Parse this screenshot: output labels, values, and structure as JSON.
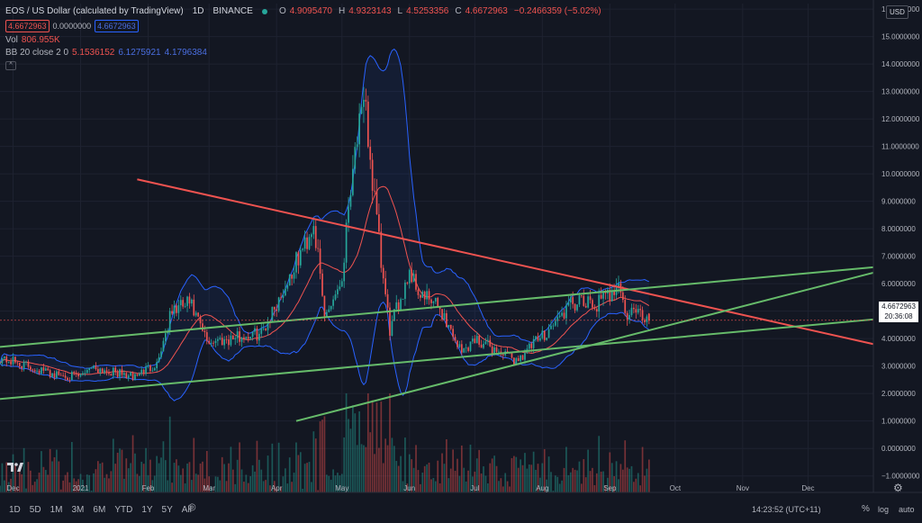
{
  "header": {
    "symbol": "EOS / US Dollar (calculated by TradingView)",
    "interval": "1D",
    "exchange": "BINANCE",
    "open_label": "O",
    "open": "4.9095470",
    "high_label": "H",
    "high": "4.9323143",
    "low_label": "L",
    "low": "4.5253356",
    "close_label": "C",
    "close": "4.6672963",
    "change": "−0.2466359 (−5.02%)",
    "sell": "4.6672963",
    "spread": "0.0000000",
    "buy": "4.6672963"
  },
  "indicators": {
    "volume_label": "Vol",
    "volume_value": "806.955K",
    "bb_label": "BB 20 close 2 0",
    "bb_basis": "5.1536152",
    "bb_upper": "6.1275921",
    "bb_lower": "4.1796384",
    "collapse_glyph": "^"
  },
  "price_scale": {
    "currency": "USD",
    "labels": [
      "16.0000000",
      "15.0000000",
      "14.0000000",
      "13.0000000",
      "12.0000000",
      "11.0000000",
      "10.0000000",
      "9.0000000",
      "8.0000000",
      "7.0000000",
      "6.0000000",
      "5.0000000",
      "4.0000000",
      "3.0000000",
      "2.0000000",
      "1.0000000",
      "0.0000000",
      "−1.0000000"
    ],
    "last_price": "4.6672963",
    "countdown": "20:36:08"
  },
  "time_axis": {
    "labels": [
      "Dec",
      "2021",
      "Feb",
      "Mar",
      "Apr",
      "May",
      "Jun",
      "Jul",
      "Aug",
      "Sep",
      "Oct",
      "Nov",
      "Dec"
    ]
  },
  "toolbar": {
    "timeframes": [
      "1D",
      "5D",
      "1M",
      "3M",
      "6M",
      "YTD",
      "1Y",
      "5Y",
      "All"
    ],
    "camera_glyph": "◎",
    "clock": "14:23:52 (UTC+11)",
    "percent_label": "%",
    "log_label": "log",
    "auto_label": "auto",
    "settings_glyph": "⚙"
  },
  "colors": {
    "background": "#131722",
    "up": "#26a69a",
    "down": "#ef5350",
    "bb_band": "#2962ff",
    "bb_basis": "#ef5350",
    "trend_red": "#ef5350",
    "trend_green": "#66bb6a"
  },
  "chart_data": {
    "type": "candlestick",
    "title": "EOS / US Dollar (calculated by TradingView)",
    "interval": "1D",
    "y_range": [
      -1.6,
      16.2
    ],
    "x_range": [
      "2020-11-25",
      "2021-12-31"
    ],
    "anchors": [
      [
        "2020-11-25",
        3.3
      ],
      [
        "2020-12-20",
        2.7
      ],
      [
        "2021-01-01",
        2.6
      ],
      [
        "2021-01-05",
        3.0
      ],
      [
        "2021-01-25",
        2.6
      ],
      [
        "2021-02-05",
        3.1
      ],
      [
        "2021-02-12",
        5.0
      ],
      [
        "2021-02-20",
        5.3
      ],
      [
        "2021-02-28",
        3.9
      ],
      [
        "2021-03-10",
        4.0
      ],
      [
        "2021-03-25",
        4.2
      ],
      [
        "2021-04-05",
        5.9
      ],
      [
        "2021-04-15",
        7.6
      ],
      [
        "2021-04-18",
        8.3
      ],
      [
        "2021-04-23",
        4.8
      ],
      [
        "2021-05-01",
        6.2
      ],
      [
        "2021-05-05",
        9.8
      ],
      [
        "2021-05-08",
        11.5
      ],
      [
        "2021-05-12",
        12.2
      ],
      [
        "2021-05-14",
        10.5
      ],
      [
        "2021-05-19",
        6.7
      ],
      [
        "2021-05-23",
        4.3
      ],
      [
        "2021-06-01",
        6.5
      ],
      [
        "2021-06-06",
        5.6
      ],
      [
        "2021-06-15",
        5.1
      ],
      [
        "2021-06-25",
        3.5
      ],
      [
        "2021-07-01",
        4.0
      ],
      [
        "2021-07-15",
        3.4
      ],
      [
        "2021-07-20",
        3.2
      ],
      [
        "2021-08-01",
        4.1
      ],
      [
        "2021-08-15",
        5.3
      ],
      [
        "2021-08-25",
        5.2
      ],
      [
        "2021-09-01",
        5.6
      ],
      [
        "2021-09-05",
        6.2
      ],
      [
        "2021-09-08",
        4.8
      ],
      [
        "2021-09-12",
        5.0
      ],
      [
        "2021-09-19",
        4.67
      ]
    ],
    "last": {
      "date": "2021-09-19",
      "open": 4.909547,
      "high": 4.9323143,
      "low": 4.5253356,
      "close": 4.6672963
    },
    "volume": {
      "last": "806.955K",
      "max_estimate": 100000000.0
    },
    "bollinger": {
      "length": 20,
      "source": "close",
      "mult": 2,
      "offset": 0,
      "basis": 5.1536152,
      "upper": 6.1275921,
      "lower": 4.1796384
    },
    "trend_lines": [
      {
        "color": "red",
        "from": [
          "2021-01-27",
          9.8
        ],
        "to": [
          "2021-12-31",
          3.8
        ]
      },
      {
        "color": "green",
        "from": [
          "2020-11-25",
          3.7
        ],
        "to": [
          "2021-12-31",
          6.6
        ]
      },
      {
        "color": "green",
        "from": [
          "2020-11-25",
          1.8
        ],
        "to": [
          "2021-12-31",
          4.7
        ]
      },
      {
        "color": "green",
        "from": [
          "2021-04-10",
          1.0
        ],
        "to": [
          "2021-12-31",
          6.4
        ]
      }
    ],
    "grid": true
  }
}
